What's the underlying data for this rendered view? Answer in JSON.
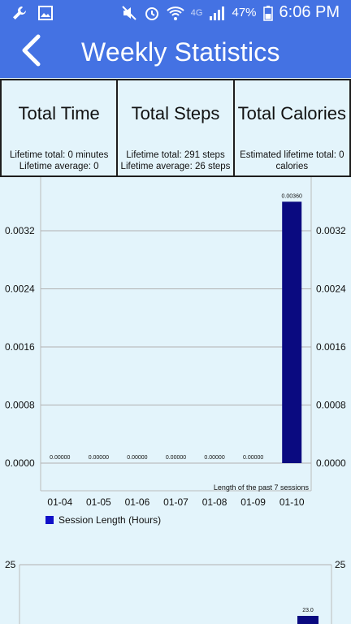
{
  "status_bar": {
    "network": "4G",
    "battery": "47%",
    "time": "6:06 PM"
  },
  "app_bar": {
    "title": "Weekly Statistics"
  },
  "cards": [
    {
      "title": "Total Time",
      "line1": "Lifetime total: 0 minutes",
      "line2": "Lifetime average: 0"
    },
    {
      "title": "Total Steps",
      "line1": "Lifetime total: 291 steps",
      "line2": "Lifetime average: 26 steps"
    },
    {
      "title": "Total Calories",
      "line1": "Estimated lifetime total: 0",
      "line2": "calories"
    }
  ],
  "chart_data": [
    {
      "type": "bar",
      "categories": [
        "01-04",
        "01-05",
        "01-06",
        "01-07",
        "01-08",
        "01-09",
        "01-10"
      ],
      "series": [
        {
          "name": "Session Length (Hours)",
          "values": [
            0,
            0,
            0,
            0,
            0,
            0,
            0.0036
          ],
          "labels": [
            "0.00000",
            "0.00000",
            "0.00000",
            "0.00000",
            "0.00000",
            "0.00000",
            "0.00360"
          ]
        }
      ],
      "yticks": [
        "0.0000",
        "0.0008",
        "0.0016",
        "0.0024",
        "0.0032"
      ],
      "ylim": [
        0,
        0.0036
      ],
      "description_label": "Length of the past 7 sessions",
      "grid": true,
      "legend_position": "bottom-left",
      "bar_color": "#0a0a80"
    },
    {
      "type": "bar",
      "yticks": [
        "25"
      ],
      "ylim": [
        0,
        25
      ],
      "visible_bar_label": "23.0",
      "visible_value": 23,
      "bar_color": "#0a0a80"
    }
  ]
}
